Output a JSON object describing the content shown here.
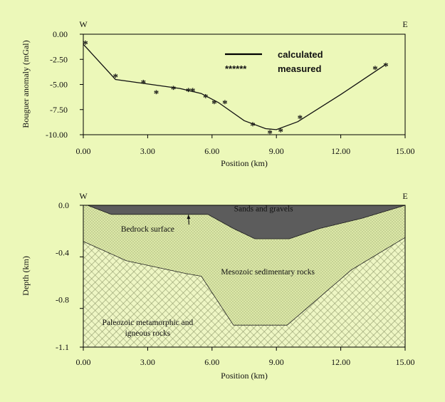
{
  "chart_data": [
    {
      "type": "line",
      "title": "",
      "xlabel": "Position (km)",
      "ylabel": "Bouguer anomaly (mGal)",
      "xlim": [
        0,
        15
      ],
      "ylim": [
        -10,
        0
      ],
      "xticks": [
        0,
        3,
        6,
        9,
        12,
        15
      ],
      "yticks": [
        0,
        -2.5,
        -5,
        -7.5,
        -10
      ],
      "xtick_labels": [
        "0.00",
        "3.00",
        "6.00",
        "9.00",
        "12.00",
        "15.00"
      ],
      "ytick_labels": [
        "0.00",
        "-2.50",
        "-5.00",
        "-7.50",
        "-10.00"
      ],
      "direction_labels": {
        "left": "W",
        "right": "E"
      },
      "legend": [
        {
          "symbol": "line",
          "label": "calculated"
        },
        {
          "symbol": "******",
          "label": "measured"
        }
      ],
      "series": [
        {
          "name": "calculated",
          "style": "line",
          "x": [
            0,
            1.5,
            4.5,
            5.5,
            6.3,
            7.5,
            8.5,
            9.0,
            10.0,
            12.0,
            14.1
          ],
          "y": [
            -1.0,
            -4.5,
            -5.4,
            -5.9,
            -6.8,
            -8.6,
            -9.4,
            -9.5,
            -8.7,
            -6.0,
            -3.0
          ]
        },
        {
          "name": "measured",
          "style": "asterisk",
          "x": [
            0.1,
            1.5,
            2.8,
            3.4,
            4.2,
            4.9,
            5.1,
            5.7,
            6.1,
            6.6,
            7.9,
            8.7,
            9.2,
            10.1,
            13.6,
            14.1
          ],
          "y": [
            -0.9,
            -4.2,
            -4.8,
            -5.8,
            -5.4,
            -5.6,
            -5.6,
            -6.2,
            -6.8,
            -6.8,
            -9.0,
            -9.8,
            -9.6,
            -8.3,
            -3.4,
            -3.1
          ]
        }
      ]
    },
    {
      "type": "area",
      "title": "",
      "xlabel": "Position (km)",
      "ylabel": "Depth (km)",
      "xlim": [
        0,
        15
      ],
      "ylim": [
        -1.1,
        0
      ],
      "xticks": [
        0,
        3,
        6,
        9,
        12,
        15
      ],
      "yticks": [
        0,
        -0.4,
        -0.8,
        -1.1
      ],
      "xtick_labels": [
        "0.00",
        "3.00",
        "6.00",
        "9.00",
        "12.00",
        "15.00"
      ],
      "ytick_labels": [
        "0.0",
        "-0.4",
        "-0.8",
        "-1.1"
      ],
      "direction_labels": {
        "left": "W",
        "right": "E"
      },
      "layers": [
        {
          "name": "Paleozoic metamorphic and igneous rocks",
          "label_lines": [
            "Paleozoic metamorphic and",
            "igneous rocks"
          ],
          "fill": "#eef6c4",
          "pattern": "crosshatch",
          "label_at": [
            3.0,
            -0.93
          ]
        },
        {
          "name": "Mesozoic sedimentary rocks",
          "label_lines": [
            "Mesozoic sedimentary rocks"
          ],
          "fill": "#dce8a8",
          "pattern": "dots",
          "label_at": [
            8.6,
            -0.535
          ],
          "x": [
            0,
            0.2,
            1.3,
            3.5,
            5.8,
            7.0,
            8.0,
            9.6,
            11.0,
            13.0,
            15.0,
            15.0,
            12.5,
            9.5,
            7.0,
            5.5,
            4.8,
            2.0,
            0
          ],
          "y": [
            0,
            0,
            -0.07,
            -0.07,
            -0.07,
            -0.18,
            -0.26,
            -0.26,
            -0.18,
            -0.1,
            0,
            -0.25,
            -0.5,
            -0.93,
            -0.93,
            -0.55,
            -0.53,
            -0.43,
            -0.28
          ]
        },
        {
          "name": "Sands and gravels",
          "label_lines": [
            "Sands and gravels"
          ],
          "fill": "#5c5c5c",
          "label_at": [
            8.4,
            -0.048
          ],
          "x": [
            0,
            15,
            15,
            13.0,
            11.0,
            9.6,
            8.0,
            7.0,
            5.8,
            3.5,
            1.3,
            0.2
          ],
          "y": [
            0,
            0,
            0,
            -0.1,
            -0.18,
            -0.26,
            -0.26,
            -0.18,
            -0.07,
            -0.07,
            -0.07,
            0
          ]
        }
      ],
      "annotations": [
        {
          "text": "Bedrock surface",
          "at": [
            3.0,
            -0.205
          ],
          "arrow_to": [
            4.9,
            -0.075
          ]
        }
      ]
    }
  ]
}
